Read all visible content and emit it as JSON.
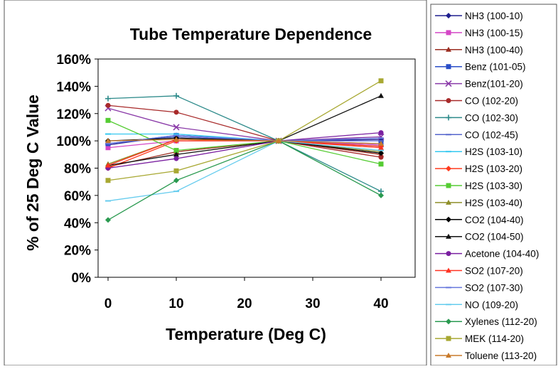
{
  "chart_data": {
    "type": "line",
    "title": "Tube Temperature Dependence",
    "xlabel": "Temperature (Deg C)",
    "ylabel": "% of 25 Deg C Value",
    "x_ticks": [
      0,
      10,
      20,
      30,
      40
    ],
    "y_ticks": [
      "0%",
      "20%",
      "40%",
      "60%",
      "80%",
      "100%",
      "120%",
      "140%",
      "160%"
    ],
    "xlim": [
      0,
      45
    ],
    "ylim": [
      0,
      160
    ],
    "grid": false,
    "legend_position": "right",
    "x": [
      0,
      10,
      25,
      40
    ],
    "series": [
      {
        "name": "NH3 (100-10)",
        "color": "#1f1f8f",
        "marker": "diamond",
        "values": [
          97,
          104,
          100,
          101
        ]
      },
      {
        "name": "NH3 (100-15)",
        "color": "#d447c6",
        "marker": "square",
        "values": [
          95,
          100,
          100,
          97
        ]
      },
      {
        "name": "NH3 (100-40)",
        "color": "#9b2d20",
        "marker": "triangle",
        "values": [
          81,
          92,
          100,
          90
        ]
      },
      {
        "name": "Benz (101-05)",
        "color": "#2a4ec8",
        "marker": "square",
        "values": [
          98,
          104,
          100,
          98
        ]
      },
      {
        "name": "Benz(101-20)",
        "color": "#8a3aa8",
        "marker": "x",
        "values": [
          124,
          110,
          100,
          103
        ]
      },
      {
        "name": "CO (102-20)",
        "color": "#a82a2a",
        "marker": "circle",
        "values": [
          126,
          121,
          100,
          88
        ]
      },
      {
        "name": "CO (102-30)",
        "color": "#2e8b8b",
        "marker": "plus",
        "values": [
          131,
          133,
          100,
          63
        ]
      },
      {
        "name": "CO (102-45)",
        "color": "#5566cc",
        "marker": "dash",
        "values": [
          98,
          103,
          100,
          100
        ]
      },
      {
        "name": "H2S (103-10)",
        "color": "#33c8f0",
        "marker": "dash",
        "values": [
          105,
          105,
          100,
          96
        ]
      },
      {
        "name": "H2S (103-20)",
        "color": "#ff3b1f",
        "marker": "diamond",
        "values": [
          80,
          100,
          100,
          96
        ]
      },
      {
        "name": "H2S (103-30)",
        "color": "#55cc33",
        "marker": "square",
        "values": [
          115,
          93,
          100,
          83
        ]
      },
      {
        "name": "H2S (103-40)",
        "color": "#8f8f2a",
        "marker": "triangle",
        "values": [
          83,
          101,
          100,
          92
        ]
      },
      {
        "name": "CO2 (104-40)",
        "color": "#000000",
        "marker": "diamond",
        "values": [
          100,
          102,
          100,
          91
        ]
      },
      {
        "name": "CO2 (104-50)",
        "color": "#111111",
        "marker": "triangle",
        "values": [
          82,
          90,
          100,
          133
        ]
      },
      {
        "name": "Acetone (104-40)",
        "color": "#7a1fa0",
        "marker": "circle",
        "values": [
          80,
          87,
          100,
          106
        ]
      },
      {
        "name": "SO2 (107-20)",
        "color": "#ff3322",
        "marker": "triangle",
        "values": [
          82,
          101,
          100,
          95
        ]
      },
      {
        "name": "SO2 (107-30)",
        "color": "#6677dd",
        "marker": "dash",
        "values": [
          98,
          104,
          100,
          102
        ]
      },
      {
        "name": "NO (109-20)",
        "color": "#66ccee",
        "marker": "dash",
        "values": [
          56,
          63,
          100,
          93
        ]
      },
      {
        "name": "Xylenes (112-20)",
        "color": "#2a9a50",
        "marker": "diamond",
        "values": [
          42,
          71,
          100,
          60
        ]
      },
      {
        "name": "MEK (114-20)",
        "color": "#a8a832",
        "marker": "square",
        "values": [
          71,
          78,
          100,
          144
        ]
      },
      {
        "name": "Toluene (113-20)",
        "color": "#c87a2a",
        "marker": "triangle",
        "values": [
          100,
          101,
          100,
          98
        ]
      }
    ]
  }
}
